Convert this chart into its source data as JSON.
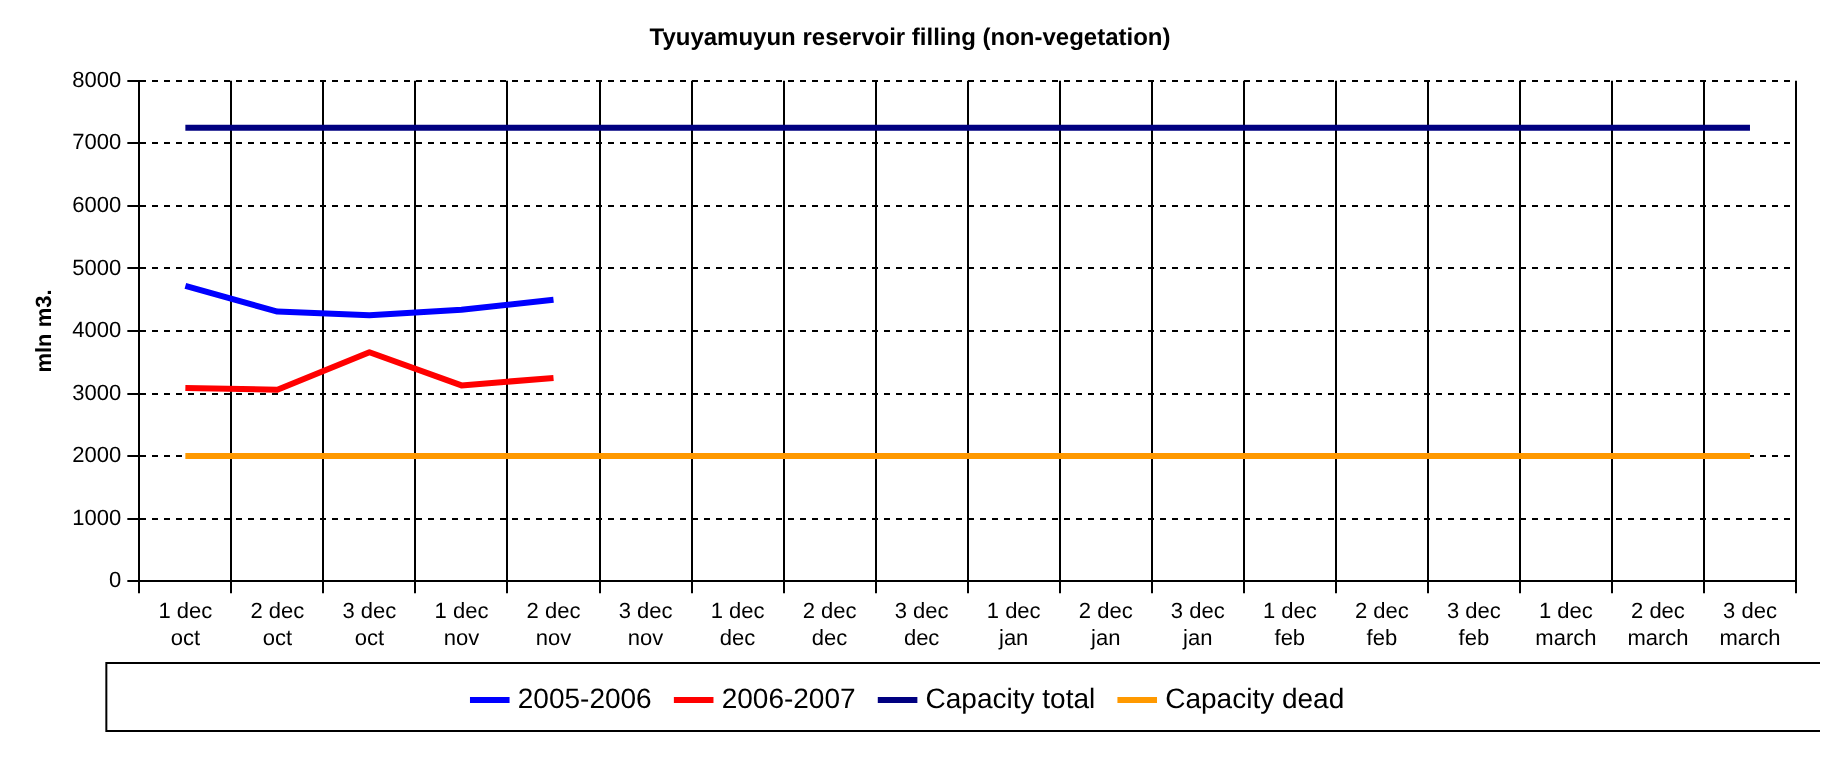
{
  "chart_data": {
    "type": "line",
    "title": "Tyuyamuyun reservoir filling (non-vegetation)",
    "ylabel": "mln m3.",
    "categories": [
      "1 dec\noct",
      "2 dec\noct",
      "3 dec\noct",
      "1 dec\nnov",
      "2 dec\nnov",
      "3 dec\nnov",
      "1 dec\ndec",
      "2 dec\ndec",
      "3 dec\ndec",
      "1 dec\njan",
      "2 dec\njan",
      "3 dec\njan",
      "1 dec\nfeb",
      "2 dec\nfeb",
      "3 dec\nfeb",
      "1 dec\nmarch",
      "2 dec\nmarch",
      "3 dec\nmarch"
    ],
    "series": [
      {
        "name": "2005-2006",
        "color": "#0000ff",
        "values": [
          4720,
          4310,
          4250,
          4340,
          4500,
          null,
          null,
          null,
          null,
          null,
          null,
          null,
          null,
          null,
          null,
          null,
          null,
          null
        ]
      },
      {
        "name": "2006-2007",
        "color": "#ff0000",
        "values": [
          3090,
          3060,
          3660,
          3130,
          3250,
          null,
          null,
          null,
          null,
          null,
          null,
          null,
          null,
          null,
          null,
          null,
          null,
          null
        ]
      },
      {
        "name": "Capacity total",
        "color": "#000080",
        "values": [
          7250,
          7250,
          7250,
          7250,
          7250,
          7250,
          7250,
          7250,
          7250,
          7250,
          7250,
          7250,
          7250,
          7250,
          7250,
          7250,
          7250,
          7250
        ]
      },
      {
        "name": "Capacity dead",
        "color": "#ff9900",
        "values": [
          2000,
          2000,
          2000,
          2000,
          2000,
          2000,
          2000,
          2000,
          2000,
          2000,
          2000,
          2000,
          2000,
          2000,
          2000,
          2000,
          2000,
          2000
        ]
      }
    ],
    "ylim": [
      0,
      8000
    ],
    "yticks": [
      0,
      1000,
      2000,
      3000,
      4000,
      5000,
      6000,
      7000,
      8000
    ],
    "grid": true,
    "legend": "bottom",
    "marker": "none",
    "line_style": "solid"
  }
}
